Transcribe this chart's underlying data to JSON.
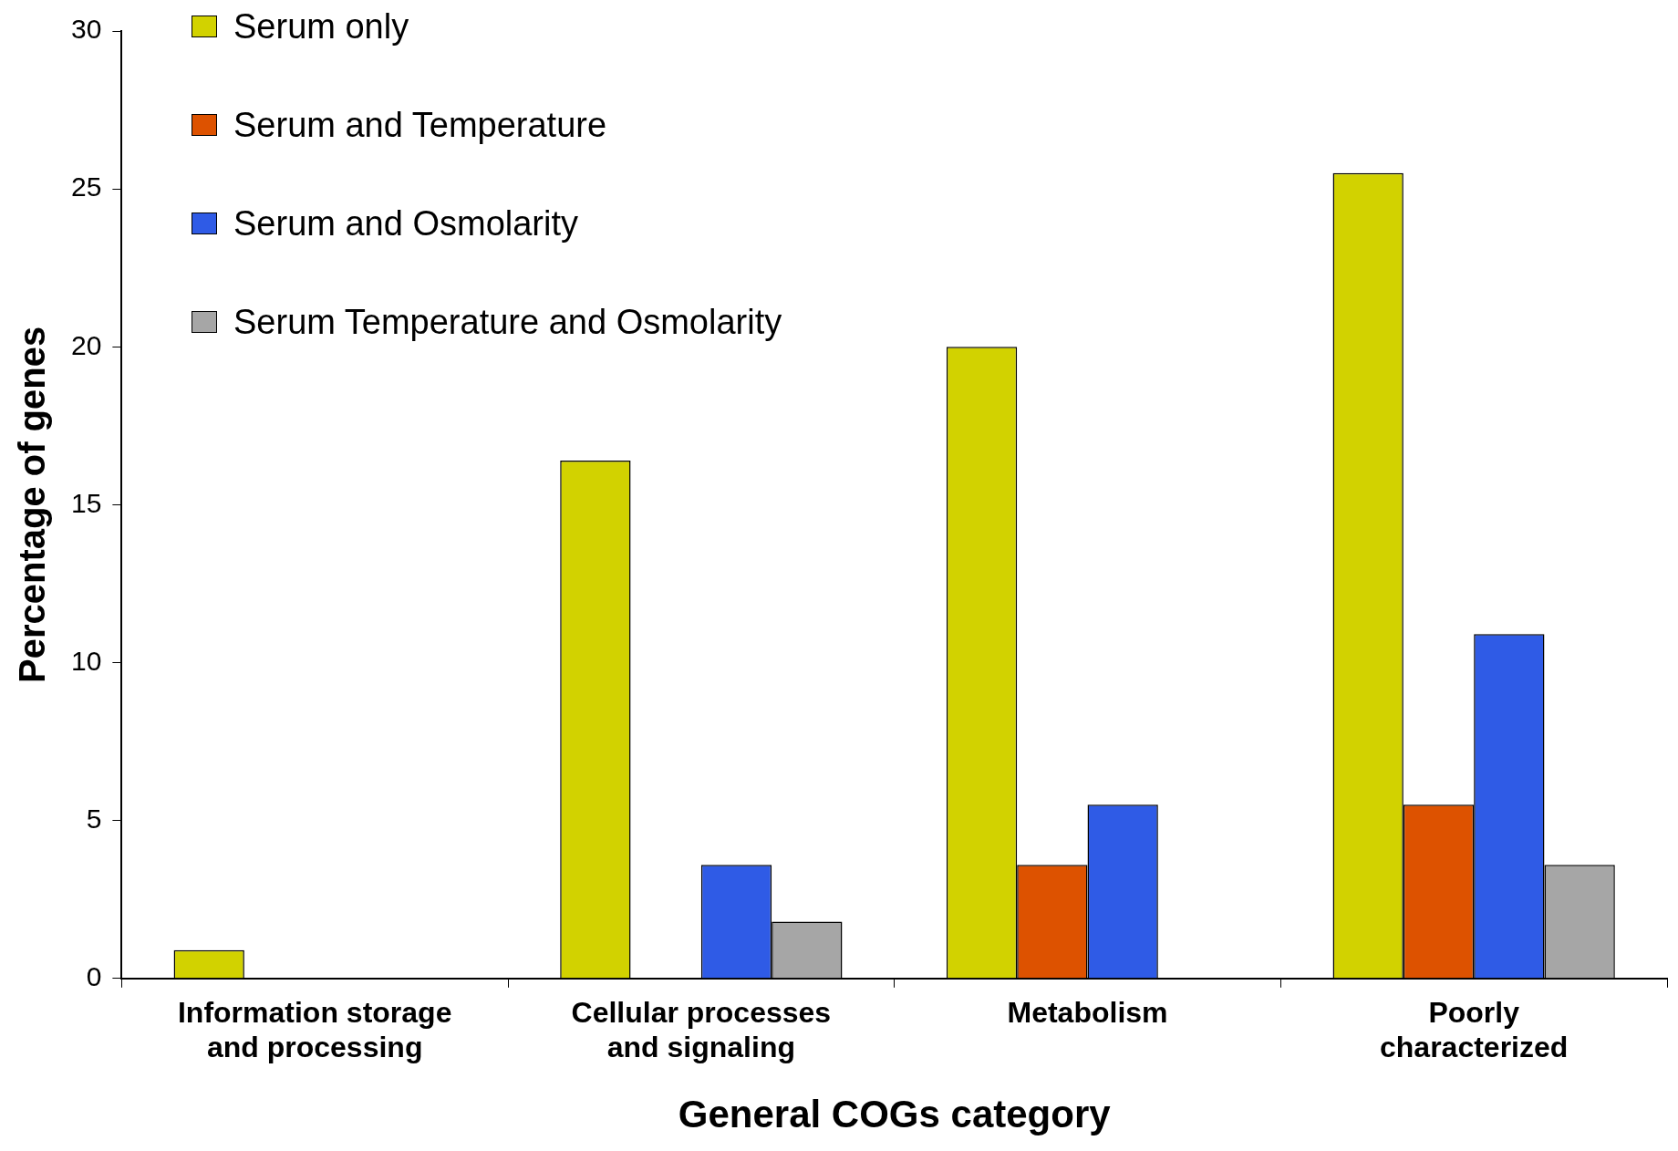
{
  "chart_data": {
    "type": "bar",
    "xlabel": "General COGs category",
    "ylabel": "Percentage of genes",
    "categories": [
      "Information storage and processing",
      "Cellular processes and signaling",
      "Metabolism",
      "Poorly characterized"
    ],
    "series": [
      {
        "name": "Serum only",
        "color": "#d2d200",
        "values": [
          0.9,
          16.4,
          20,
          25.5
        ]
      },
      {
        "name": "Serum and Temperature",
        "color": "#dd5200",
        "values": [
          0,
          0,
          3.6,
          5.5
        ]
      },
      {
        "name": "Serum and Osmolarity",
        "color": "#2f5be6",
        "values": [
          0,
          3.6,
          5.5,
          10.9
        ]
      },
      {
        "name": "Serum Temperature and Osmolarity",
        "color": "#a6a6a6",
        "values": [
          0,
          1.8,
          0,
          3.6
        ]
      }
    ],
    "ylim": [
      0,
      30
    ],
    "yticks": [
      0,
      5,
      10,
      15,
      20,
      25,
      30
    ],
    "grid": false,
    "legend": "top left"
  }
}
